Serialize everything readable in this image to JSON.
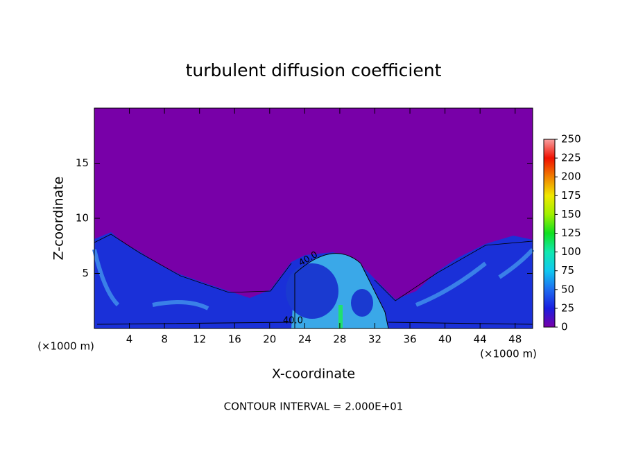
{
  "chart_data": {
    "type": "contour",
    "title": "turbulent diffusion coefficient",
    "x_label": "X-coordinate",
    "y_label": "Z-coordinate",
    "x_unit_left": "(×1000 m)",
    "x_unit_right": "(×1000 m)",
    "footer": "CONTOUR INTERVAL = 2.000E+01",
    "contour_labels": [
      "40.0",
      "40.0"
    ],
    "xlim": [
      0,
      50
    ],
    "xticks": [
      4,
      8,
      12,
      16,
      20,
      24,
      28,
      32,
      36,
      40,
      44,
      48
    ],
    "ylim": [
      0,
      20
    ],
    "yticks": [
      5,
      10,
      15
    ],
    "colorbar": {
      "lim": [
        0,
        250
      ],
      "ticks": [
        0,
        25,
        50,
        75,
        100,
        125,
        150,
        175,
        200,
        225,
        250
      ],
      "colors": [
        "#7800a8",
        "#1a1ee0",
        "#1e6cf0",
        "#10c8f0",
        "#10e8b0",
        "#10e020",
        "#a0f000",
        "#f0e800",
        "#f08000",
        "#f01000",
        "#f8a0a0"
      ]
    }
  }
}
